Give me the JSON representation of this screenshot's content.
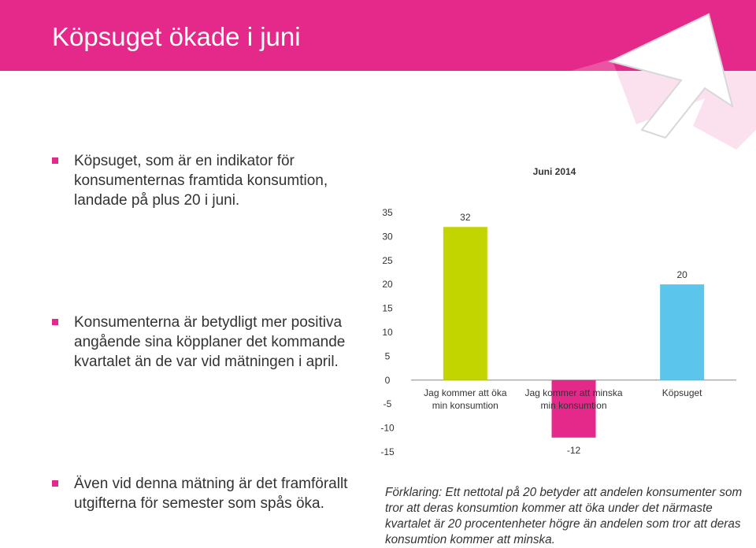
{
  "slide": {
    "title": "Köpsuget ökade i juni",
    "bullets": [
      "Köpsuget, som är en indikator för konsumenternas framtida konsumtion, landade på plus 20 i juni.",
      "Konsumenterna är betydligt mer positiva angående sina köpplaner det kommande kvartalet än de var vid mätningen i april.",
      "Även vid denna mätning är det framförallt utgifterna för semester som spås öka."
    ],
    "note": "Förklaring: Ett nettotal på 20 betyder att andelen konsumenter som tror att deras konsumtion kommer att öka under det närmaste kvartalet är 20 procentenheter högre än andelen som tror att deras konsumtion kommer att minska."
  },
  "colors": {
    "header": "#e5298a",
    "bar_increase": "#c3d500",
    "bar_decrease": "#e5298a",
    "bar_index": "#5bc5ec"
  },
  "chart_data": {
    "type": "bar",
    "title": "Juni 2014",
    "categories": [
      [
        "Jag kommer att öka",
        "min konsumtion"
      ],
      [
        "Jag kommer att minska",
        "min konsumtion"
      ],
      [
        "Köpsuget"
      ]
    ],
    "values": [
      32,
      -12,
      20
    ],
    "value_labels": [
      "32",
      "-12",
      "20"
    ],
    "colors": [
      "#c3d500",
      "#e5298a",
      "#5bc5ec"
    ],
    "yticks": [
      "35",
      "30",
      "25",
      "20",
      "15",
      "10",
      "5",
      "0",
      "-5",
      "-10",
      "-15"
    ],
    "ylim": [
      -15,
      35
    ],
    "grid": false,
    "legend": "none"
  }
}
